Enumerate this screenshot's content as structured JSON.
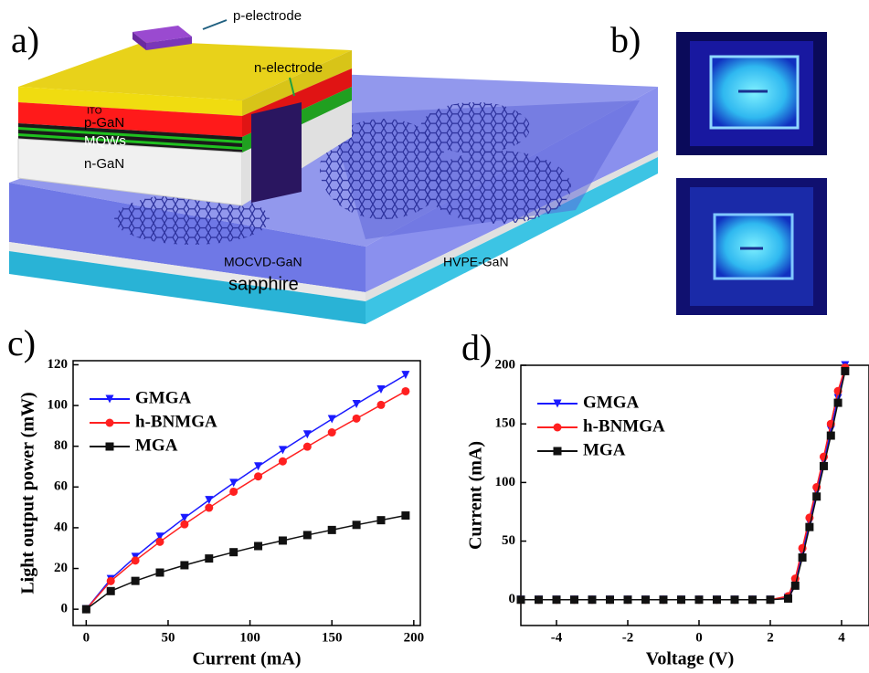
{
  "panels": [
    "a)",
    "b)",
    "c)",
    "d)"
  ],
  "diagram": {
    "p_electrode": "p-electrode",
    "n_electrode": "n-electrode",
    "ito": "ITO",
    "p_gan": "p-GaN",
    "mqws": "MQWs",
    "n_gan": "n-GaN",
    "mocvd": "MOCVD-GaN",
    "hvpe": "HVPE-GaN",
    "sapphire": "sapphire"
  },
  "chart_data": [
    {
      "type": "line",
      "x_label": "Current (mA)",
      "y_label": "Light output power (mW)",
      "x": [
        0,
        15,
        30,
        45,
        60,
        75,
        90,
        105,
        120,
        135,
        150,
        165,
        180,
        195
      ],
      "xlim": [
        -8,
        204
      ],
      "ylim": [
        -8,
        122
      ],
      "xticks": [
        0,
        50,
        100,
        150,
        200
      ],
      "yticks": [
        0,
        20,
        40,
        60,
        80,
        100,
        120
      ],
      "legend": "upper left",
      "series": [
        {
          "name": "GMGA",
          "color": "#1a1aff",
          "marker": "triangle-down",
          "values": [
            0,
            14.8,
            25.7,
            35.6,
            44.8,
            53.6,
            62.0,
            70.1,
            78.1,
            85.8,
            93.3,
            100.7,
            107.9,
            115
          ]
        },
        {
          "name": "h-BNMGA",
          "color": "#ff2020",
          "marker": "circle",
          "values": [
            0,
            13.8,
            23.9,
            33.1,
            41.7,
            49.8,
            57.7,
            65.2,
            72.6,
            79.8,
            86.8,
            93.6,
            100.3,
            107
          ]
        },
        {
          "name": "MGA",
          "color": "#111111",
          "marker": "square",
          "values": [
            0,
            8.9,
            13.9,
            18.0,
            21.6,
            24.9,
            28.0,
            31.0,
            33.7,
            36.4,
            38.9,
            41.4,
            43.7,
            46
          ]
        }
      ]
    },
    {
      "type": "line",
      "x_label": "Voltage (V)",
      "y_label": "Current (mA)",
      "x": [
        -5,
        -4.5,
        -4,
        -3.5,
        -3,
        -2.5,
        -2,
        -1.5,
        -1,
        -0.5,
        0,
        0.5,
        1,
        1.5,
        2,
        2.5,
        2.7,
        2.9,
        3.1,
        3.3,
        3.5,
        3.7,
        3.9,
        4.1
      ],
      "xlim": [
        -5,
        4.77
      ],
      "ylim": [
        -22,
        200
      ],
      "xticks": [
        -4,
        -2,
        0,
        2,
        4
      ],
      "yticks": [
        0,
        50,
        100,
        150,
        200
      ],
      "legend": "upper left",
      "series": [
        {
          "name": "GMGA",
          "color": "#1a1aff",
          "marker": "triangle-down",
          "values": [
            0,
            0,
            0,
            0,
            0,
            0,
            0,
            0,
            0,
            0,
            0,
            0,
            0,
            0,
            0,
            2,
            15,
            40,
            66,
            92,
            118,
            145,
            172,
            200
          ]
        },
        {
          "name": "h-BNMGA",
          "color": "#ff2020",
          "marker": "circle",
          "values": [
            0,
            0,
            0,
            0,
            0,
            0,
            0,
            0,
            0,
            0,
            0,
            0,
            0,
            0,
            0,
            3,
            18,
            44,
            70,
            96,
            122,
            150,
            178,
            198
          ]
        },
        {
          "name": "MGA",
          "color": "#111111",
          "marker": "square",
          "values": [
            0,
            0,
            0,
            0,
            0,
            0,
            0,
            0,
            0,
            0,
            0,
            0,
            0,
            0,
            0,
            1,
            12,
            36,
            62,
            88,
            114,
            140,
            168,
            195
          ]
        }
      ]
    }
  ]
}
